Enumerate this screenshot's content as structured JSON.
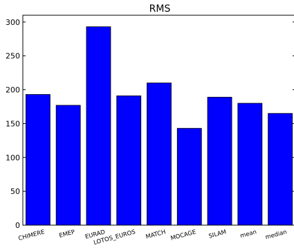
{
  "chart_data": {
    "type": "bar",
    "title": "RMS",
    "xlabel": "",
    "ylabel": "",
    "categories": [
      "CHIMERE",
      "EMEP",
      "EURAD",
      "LOTOS_EUROS",
      "MATCH",
      "MOCAGE",
      "SILAM",
      "mean",
      "median"
    ],
    "values": [
      193,
      177,
      293,
      191,
      210,
      143,
      189,
      180,
      165
    ],
    "ylim": [
      0,
      310
    ],
    "yticks": [
      "0",
      "50",
      "100",
      "150",
      "200",
      "250",
      "300"
    ],
    "bar_color": "#0000ff",
    "grid": false,
    "legend": "none"
  }
}
